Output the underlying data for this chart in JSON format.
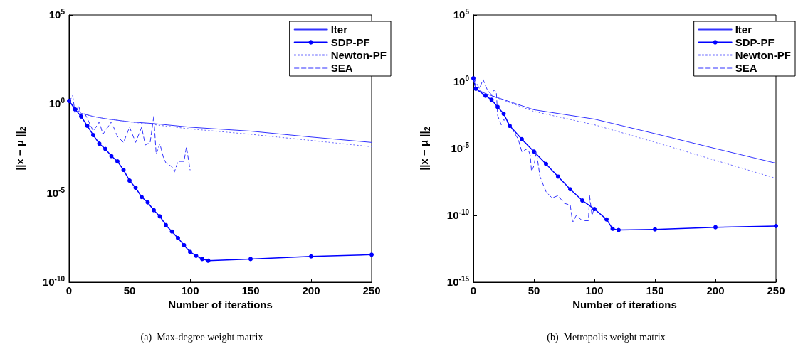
{
  "chart_data": [
    {
      "type": "line",
      "xlabel": "Number of iterations",
      "ylabel": "||x − μ ||$_{2}$",
      "log": "y",
      "grid": false,
      "legend": "top right",
      "annotations": [
        "(a)  Max-degree weight matrix"
      ],
      "xlim": [
        0,
        250
      ],
      "xticks": [
        0,
        50,
        100,
        150,
        200,
        250
      ],
      "ylim": [
        1e-10,
        100000.0
      ],
      "yticks": [
        {
          "value": 1e-10,
          "label": "10$^{-10}$"
        },
        {
          "value": 1e-05,
          "label": "10$^{-5}$"
        },
        {
          "value": 1,
          "label": "10$^{0}$"
        },
        {
          "value": 100000.0,
          "label": "10$^{5}$"
        }
      ],
      "series": [
        {
          "name": "Iter",
          "color": "#3333ff",
          "line_style": "solid",
          "marker": "none",
          "x": [
            0,
            5,
            10,
            20,
            30,
            50,
            70,
            100,
            150,
            200,
            250
          ],
          "values": [
            1.5,
            0.6,
            0.3,
            0.2,
            0.15,
            0.1,
            0.08,
            0.05,
            0.03,
            0.014,
            0.007
          ]
        },
        {
          "name": "SDP-PF",
          "color": "#0000ff",
          "line_style": "solid",
          "marker": "circle",
          "x": [
            0,
            5,
            10,
            15,
            20,
            25,
            30,
            35,
            40,
            45,
            50,
            55,
            60,
            65,
            70,
            75,
            80,
            85,
            90,
            95,
            100,
            105,
            110,
            115,
            150,
            200,
            250
          ],
          "values": [
            1.5,
            0.5,
            0.2,
            0.06,
            0.018,
            0.006,
            0.003,
            0.0012,
            0.0006,
            0.0002,
            5e-05,
            2e-05,
            6e-06,
            3e-06,
            1.1e-06,
            5e-07,
            1.6e-07,
            7e-08,
            3e-08,
            1.2e-08,
            5e-09,
            3e-09,
            2e-09,
            1.6e-09,
            2e-09,
            2.8e-09,
            3.5e-09
          ]
        },
        {
          "name": "Newton-PF",
          "color": "#6666ff",
          "line_style": "dotted",
          "marker": "none",
          "x": [
            0,
            5,
            10,
            20,
            30,
            50,
            70,
            100,
            150,
            200,
            250
          ],
          "values": [
            1.5,
            0.6,
            0.3,
            0.2,
            0.15,
            0.1,
            0.07,
            0.04,
            0.02,
            0.009,
            0.004
          ]
        },
        {
          "name": "SEA",
          "color": "#3333ff",
          "line_style": "dashed",
          "marker": "none",
          "x": [
            0,
            3,
            5,
            8,
            10,
            13,
            20,
            25,
            28,
            35,
            40,
            45,
            50,
            55,
            60,
            63,
            67,
            70,
            72,
            75,
            78,
            80,
            85,
            87,
            90,
            95,
            97,
            100
          ],
          "values": [
            1.3,
            3,
            0.3,
            0.8,
            0.2,
            0.3,
            0.03,
            0.1,
            0.02,
            0.1,
            0.015,
            0.007,
            0.05,
            0.007,
            0.05,
            0.005,
            0.007,
            0.2,
            0.0015,
            0.006,
            0.001,
            0.0005,
            0.0003,
            0.00015,
            0.0006,
            0.0006,
            0.004,
            0.0002
          ]
        }
      ]
    },
    {
      "type": "line",
      "xlabel": "Number of iterations",
      "ylabel": "||x − μ ||$_{2}$",
      "log": "y",
      "grid": false,
      "legend": "top right",
      "annotations": [
        "(b)  Metropolis weight matrix"
      ],
      "xlim": [
        0,
        250
      ],
      "xticks": [
        0,
        50,
        100,
        150,
        200,
        250
      ],
      "ylim": [
        1e-15,
        100000.0
      ],
      "yticks": [
        {
          "value": 1e-15,
          "label": "10$^{-15}$"
        },
        {
          "value": 1e-10,
          "label": "10$^{-10}$"
        },
        {
          "value": 1e-05,
          "label": "10$^{-5}$"
        },
        {
          "value": 1,
          "label": "10$^{0}$"
        },
        {
          "value": 100000.0,
          "label": "10$^{5}$"
        }
      ],
      "series": [
        {
          "name": "Iter",
          "color": "#3333ff",
          "line_style": "solid",
          "marker": "none",
          "x": [
            0,
            2,
            10,
            50,
            100,
            150,
            200,
            250
          ],
          "values": [
            1.8,
            0.3,
            0.13,
            0.008,
            0.0016,
            0.00013,
            1e-05,
            8e-07
          ]
        },
        {
          "name": "SDP-PF",
          "color": "#0000ff",
          "line_style": "solid",
          "marker": "circle",
          "x": [
            0,
            2,
            10,
            15,
            20,
            25,
            30,
            40,
            50,
            60,
            70,
            80,
            90,
            100,
            110,
            115,
            120,
            150,
            200,
            250
          ],
          "values": [
            1.8,
            0.3,
            0.09,
            0.045,
            0.013,
            0.004,
            0.0005,
            5e-05,
            6e-06,
            7e-07,
            8e-08,
            9e-09,
            1.3e-09,
            3e-10,
            5e-11,
            1e-11,
            8e-12,
            9e-12,
            1.3e-11,
            1.6e-11
          ]
        },
        {
          "name": "Newton-PF",
          "color": "#6666ff",
          "line_style": "dotted",
          "marker": "none",
          "x": [
            0,
            2,
            10,
            50,
            100,
            150,
            200,
            250
          ],
          "values": [
            1.8,
            0.3,
            0.13,
            0.006,
            0.0006,
            3e-05,
            1.3e-06,
            6e-08
          ]
        },
        {
          "name": "SEA",
          "color": "#3333ff",
          "line_style": "dashed",
          "marker": "none",
          "x": [
            0,
            2,
            5,
            8,
            10,
            12,
            15,
            17,
            19,
            20,
            23,
            25,
            30,
            35,
            37,
            40,
            45,
            47,
            48,
            50,
            52,
            55,
            60,
            65,
            70,
            75,
            80,
            82,
            85,
            90,
            95,
            96,
            98,
            100
          ],
          "values": [
            1.8,
            1,
            0.3,
            1.5,
            0.5,
            0.2,
            0.11,
            0.25,
            0.15,
            0.003,
            0.0006,
            0.0015,
            0.0006,
            0.0001,
            5e-05,
            6e-06,
            1e-05,
            3e-06,
            2e-07,
            5e-07,
            6e-06,
            8e-08,
            6e-09,
            2e-09,
            3e-09,
            8e-10,
            6e-10,
            3e-11,
            1e-10,
            4e-11,
            4e-11,
            3e-09,
            1e-10,
            4e-10
          ]
        }
      ]
    }
  ]
}
